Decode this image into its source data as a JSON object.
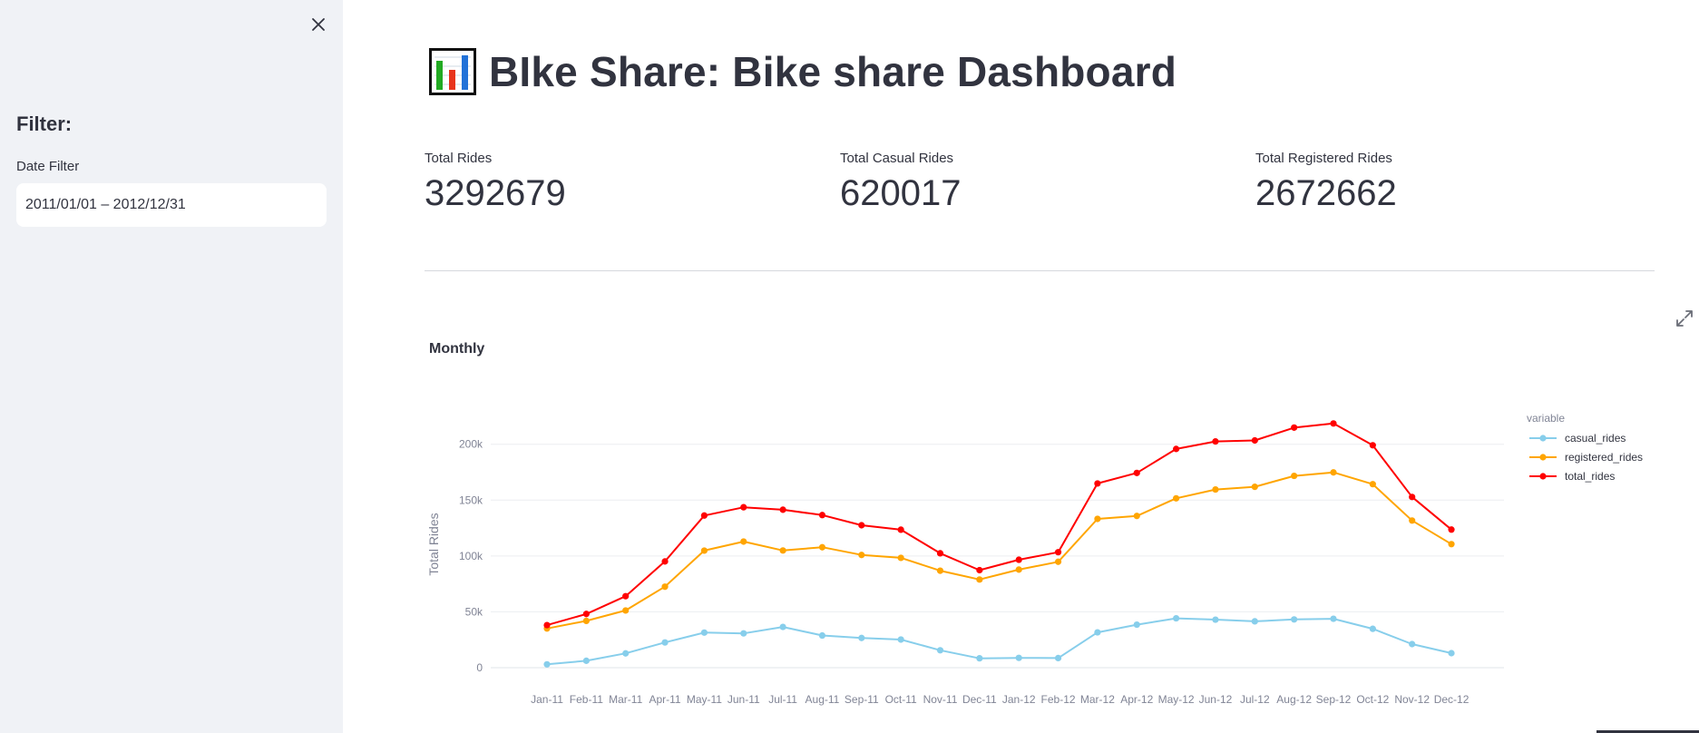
{
  "sidebar": {
    "close_icon": "close-icon",
    "filter_heading": "Filter:",
    "date_filter_label": "Date Filter",
    "date_filter_value": "2011/01/01 – 2012/12/31"
  },
  "header": {
    "icon": "bar-chart-icon",
    "title": "BIke Share: Bike share Dashboard"
  },
  "metrics": [
    {
      "label": "Total Rides",
      "value": "3292679"
    },
    {
      "label": "Total Casual Rides",
      "value": "620017"
    },
    {
      "label": "Total Registered Rides",
      "value": "2672662"
    }
  ],
  "chart_title": "Monthly",
  "colors": {
    "casual_rides": "#87ceeb",
    "registered_rides": "#ffa500",
    "total_rides": "#ff0000",
    "text": "#31333f",
    "sidebar_bg": "#f0f2f6"
  },
  "chart_data": {
    "type": "line",
    "ylabel": "Total Rides",
    "xlabel": "",
    "legend_title": "variable",
    "legend_position": "right",
    "grid": true,
    "ylim": [
      0,
      220000
    ],
    "yticks": [
      0,
      50000,
      100000,
      150000,
      200000
    ],
    "ytick_labels": [
      "0",
      "50k",
      "100k",
      "150k",
      "200k"
    ],
    "categories": [
      "Jan-11",
      "Feb-11",
      "Mar-11",
      "Apr-11",
      "May-11",
      "Jun-11",
      "Jul-11",
      "Aug-11",
      "Sep-11",
      "Oct-11",
      "Nov-11",
      "Dec-11",
      "Jan-12",
      "Feb-12",
      "Mar-12",
      "Apr-12",
      "May-12",
      "Jun-12",
      "Jul-12",
      "Aug-12",
      "Sep-12",
      "Oct-12",
      "Nov-12",
      "Dec-12"
    ],
    "series": [
      {
        "name": "casual_rides",
        "color": "#87ceeb",
        "values": [
          3000,
          6200,
          12800,
          22600,
          31400,
          30700,
          36500,
          28800,
          26600,
          25200,
          15600,
          8400,
          8800,
          8600,
          31600,
          38500,
          44200,
          43000,
          41500,
          43200,
          43800,
          34800,
          21100,
          13000
        ]
      },
      {
        "name": "registered_rides",
        "color": "#ffa500",
        "values": [
          35100,
          41900,
          51200,
          72500,
          104800,
          112900,
          104900,
          107800,
          100900,
          98300,
          86800,
          78900,
          87800,
          94800,
          133200,
          135800,
          151600,
          159500,
          161900,
          171700,
          174800,
          164300,
          131700,
          110600
        ]
      },
      {
        "name": "total_rides",
        "color": "#ff0000",
        "values": [
          38100,
          48100,
          64000,
          95100,
          136200,
          143600,
          141400,
          136600,
          127500,
          123500,
          102400,
          87300,
          96600,
          103400,
          164900,
          174300,
          195800,
          202500,
          203400,
          214900,
          218600,
          199100,
          152800,
          123600
        ]
      }
    ]
  }
}
